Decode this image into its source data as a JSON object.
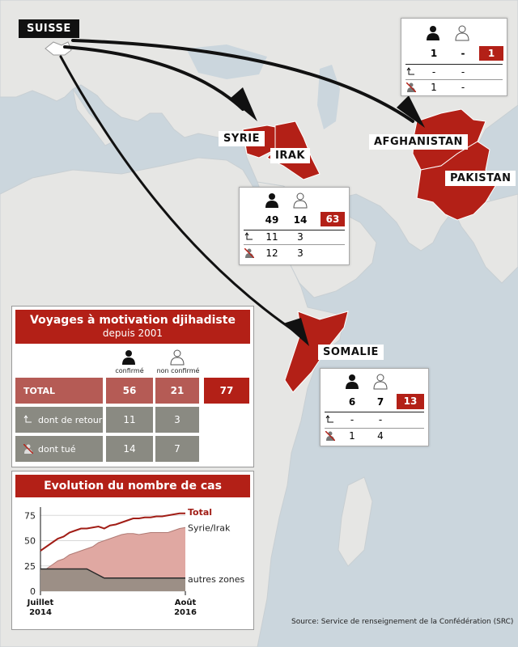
{
  "labels": {
    "suisse": "SUISSE",
    "syrie": "SYRIE",
    "irak": "IRAK",
    "afghanistan": "AFGHANISTAN",
    "pakistan": "PAKISTAN",
    "somalie": "SOMALIE"
  },
  "boxes": {
    "afpak": {
      "confirmed": "1",
      "unconfirmed": "-",
      "total": "1",
      "return_c": "-",
      "return_u": "-",
      "killed_c": "1",
      "killed_u": "-"
    },
    "syria": {
      "confirmed": "49",
      "unconfirmed": "14",
      "total": "63",
      "return_c": "11",
      "return_u": "3",
      "killed_c": "12",
      "killed_u": "3"
    },
    "somalia": {
      "confirmed": "6",
      "unconfirmed": "7",
      "total": "13",
      "return_c": "-",
      "return_u": "-",
      "killed_c": "1",
      "killed_u": "4"
    }
  },
  "summary": {
    "title": "Voyages à motivation djihadiste",
    "subtitle": "depuis 2001",
    "col_confirmed": "confirmé",
    "col_unconfirmed": "non confirmé",
    "rows": [
      {
        "label": "TOTAL",
        "confirmed": "56",
        "unconfirmed": "21",
        "total": "77"
      },
      {
        "label": "dont de retour",
        "confirmed": "11",
        "unconfirmed": "3"
      },
      {
        "label": "dont tué",
        "confirmed": "14",
        "unconfirmed": "7"
      }
    ]
  },
  "chart_data": {
    "type": "area",
    "title": "Evolution du nombre de cas",
    "x_start_label": [
      "Juillet",
      "2014"
    ],
    "x_end_label": [
      "Août",
      "2016"
    ],
    "x": [
      "2014-07",
      "2014-08",
      "2014-09",
      "2014-10",
      "2014-11",
      "2014-12",
      "2015-01",
      "2015-02",
      "2015-03",
      "2015-04",
      "2015-05",
      "2015-06",
      "2015-07",
      "2015-08",
      "2015-09",
      "2015-10",
      "2015-11",
      "2015-12",
      "2016-01",
      "2016-02",
      "2016-03",
      "2016-04",
      "2016-05",
      "2016-06",
      "2016-07",
      "2016-08"
    ],
    "yticks": [
      0,
      25,
      50,
      75
    ],
    "ylim": [
      0,
      80
    ],
    "series": [
      {
        "name": "Total",
        "color": "#a11d16",
        "values": [
          40,
          44,
          48,
          52,
          54,
          58,
          60,
          62,
          62,
          63,
          64,
          62,
          65,
          66,
          68,
          70,
          72,
          72,
          73,
          73,
          74,
          74,
          75,
          76,
          77,
          77
        ]
      },
      {
        "name": "Syrie/Irak",
        "color": "#e0a8a2",
        "values": [
          18,
          22,
          26,
          30,
          32,
          36,
          38,
          40,
          42,
          44,
          48,
          50,
          52,
          54,
          56,
          57,
          57,
          56,
          57,
          58,
          58,
          58,
          58,
          60,
          62,
          63
        ]
      },
      {
        "name": "autres zones",
        "color": "#9c8f86",
        "values": [
          22,
          22,
          22,
          22,
          22,
          22,
          22,
          22,
          22,
          19,
          16,
          13,
          13,
          13,
          13,
          13,
          13,
          13,
          13,
          13,
          13,
          13,
          13,
          13,
          13,
          13
        ]
      }
    ]
  },
  "source": "Source: Service de renseignement de la Confédération (SRC)",
  "colors": {
    "accent": "#b32017",
    "sea": "#cbd6dd",
    "land": "#e6e6e4"
  }
}
